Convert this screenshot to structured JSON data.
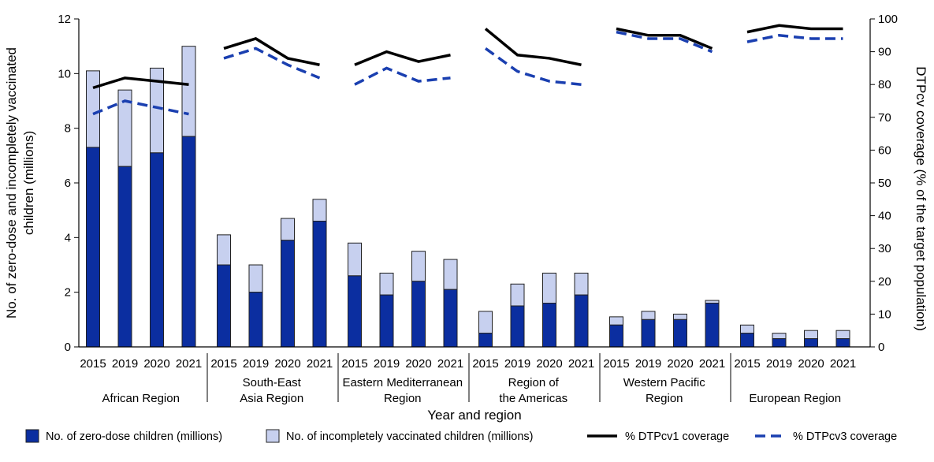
{
  "chart_data": {
    "type": "bar",
    "title": "",
    "xlabel": "Year and region",
    "ylabel": "No. of zero-dose and incompletely vaccinated children (millions)",
    "ylabel_right": "DTPcv coverage (% of the target population)",
    "ylim": [
      0,
      12
    ],
    "y_ticks": [
      0,
      2,
      4,
      6,
      8,
      10,
      12
    ],
    "ylim_right": [
      0,
      100
    ],
    "y_ticks_right": [
      0,
      10,
      20,
      30,
      40,
      50,
      60,
      70,
      80,
      90,
      100
    ],
    "years": [
      "2015",
      "2019",
      "2020",
      "2021"
    ],
    "regions": [
      {
        "name_lines": [
          "African Region"
        ],
        "zero_dose": [
          7.3,
          6.6,
          7.1,
          7.7
        ],
        "incomplete": [
          2.8,
          2.8,
          3.1,
          3.3
        ],
        "dtpcv1": [
          79,
          82,
          81,
          80
        ],
        "dtpcv3": [
          71,
          75,
          73,
          71
        ]
      },
      {
        "name_lines": [
          "South-East",
          "Asia Region"
        ],
        "zero_dose": [
          3.0,
          2.0,
          3.9,
          4.6
        ],
        "incomplete": [
          1.1,
          1.0,
          0.8,
          0.8
        ],
        "dtpcv1": [
          91,
          94,
          88,
          86
        ],
        "dtpcv3": [
          88,
          91,
          86,
          82
        ]
      },
      {
        "name_lines": [
          "Eastern Mediterranean",
          "Region"
        ],
        "zero_dose": [
          2.6,
          1.9,
          2.4,
          2.1
        ],
        "incomplete": [
          1.2,
          0.8,
          1.1,
          1.1
        ],
        "dtpcv1": [
          86,
          90,
          87,
          89
        ],
        "dtpcv3": [
          80,
          85,
          81,
          82
        ]
      },
      {
        "name_lines": [
          "Region of",
          "the Americas"
        ],
        "zero_dose": [
          0.5,
          1.5,
          1.6,
          1.9
        ],
        "incomplete": [
          0.8,
          0.8,
          1.1,
          0.8
        ],
        "dtpcv1": [
          97,
          89,
          88,
          86
        ],
        "dtpcv3": [
          91,
          84,
          81,
          80
        ]
      },
      {
        "name_lines": [
          "Western Pacific",
          "Region"
        ],
        "zero_dose": [
          0.8,
          1.0,
          1.0,
          1.6
        ],
        "incomplete": [
          0.3,
          0.3,
          0.2,
          0.1
        ],
        "dtpcv1": [
          97,
          95,
          95,
          91
        ],
        "dtpcv3": [
          96,
          94,
          94,
          90
        ]
      },
      {
        "name_lines": [
          "European Region"
        ],
        "zero_dose": [
          0.5,
          0.3,
          0.3,
          0.3
        ],
        "incomplete": [
          0.3,
          0.2,
          0.3,
          0.3
        ],
        "dtpcv1": [
          96,
          98,
          97,
          97
        ],
        "dtpcv3": [
          93,
          95,
          94,
          94
        ]
      }
    ],
    "legend": {
      "placement": "bottom",
      "zero_dose_label": "No. of zero-dose children (millions)",
      "incomplete_label": "No. of incompletely vaccinated children (millions)",
      "dtpcv1_label": "% DTPcv1 coverage",
      "dtpcv3_label": "% DTPcv3 coverage"
    },
    "colors": {
      "zero_dose": "#0b2ea0",
      "incomplete": "#c7d0ef",
      "dtpcv1": "#000000",
      "dtpcv3": "#1a3fb0"
    },
    "grid": false
  }
}
